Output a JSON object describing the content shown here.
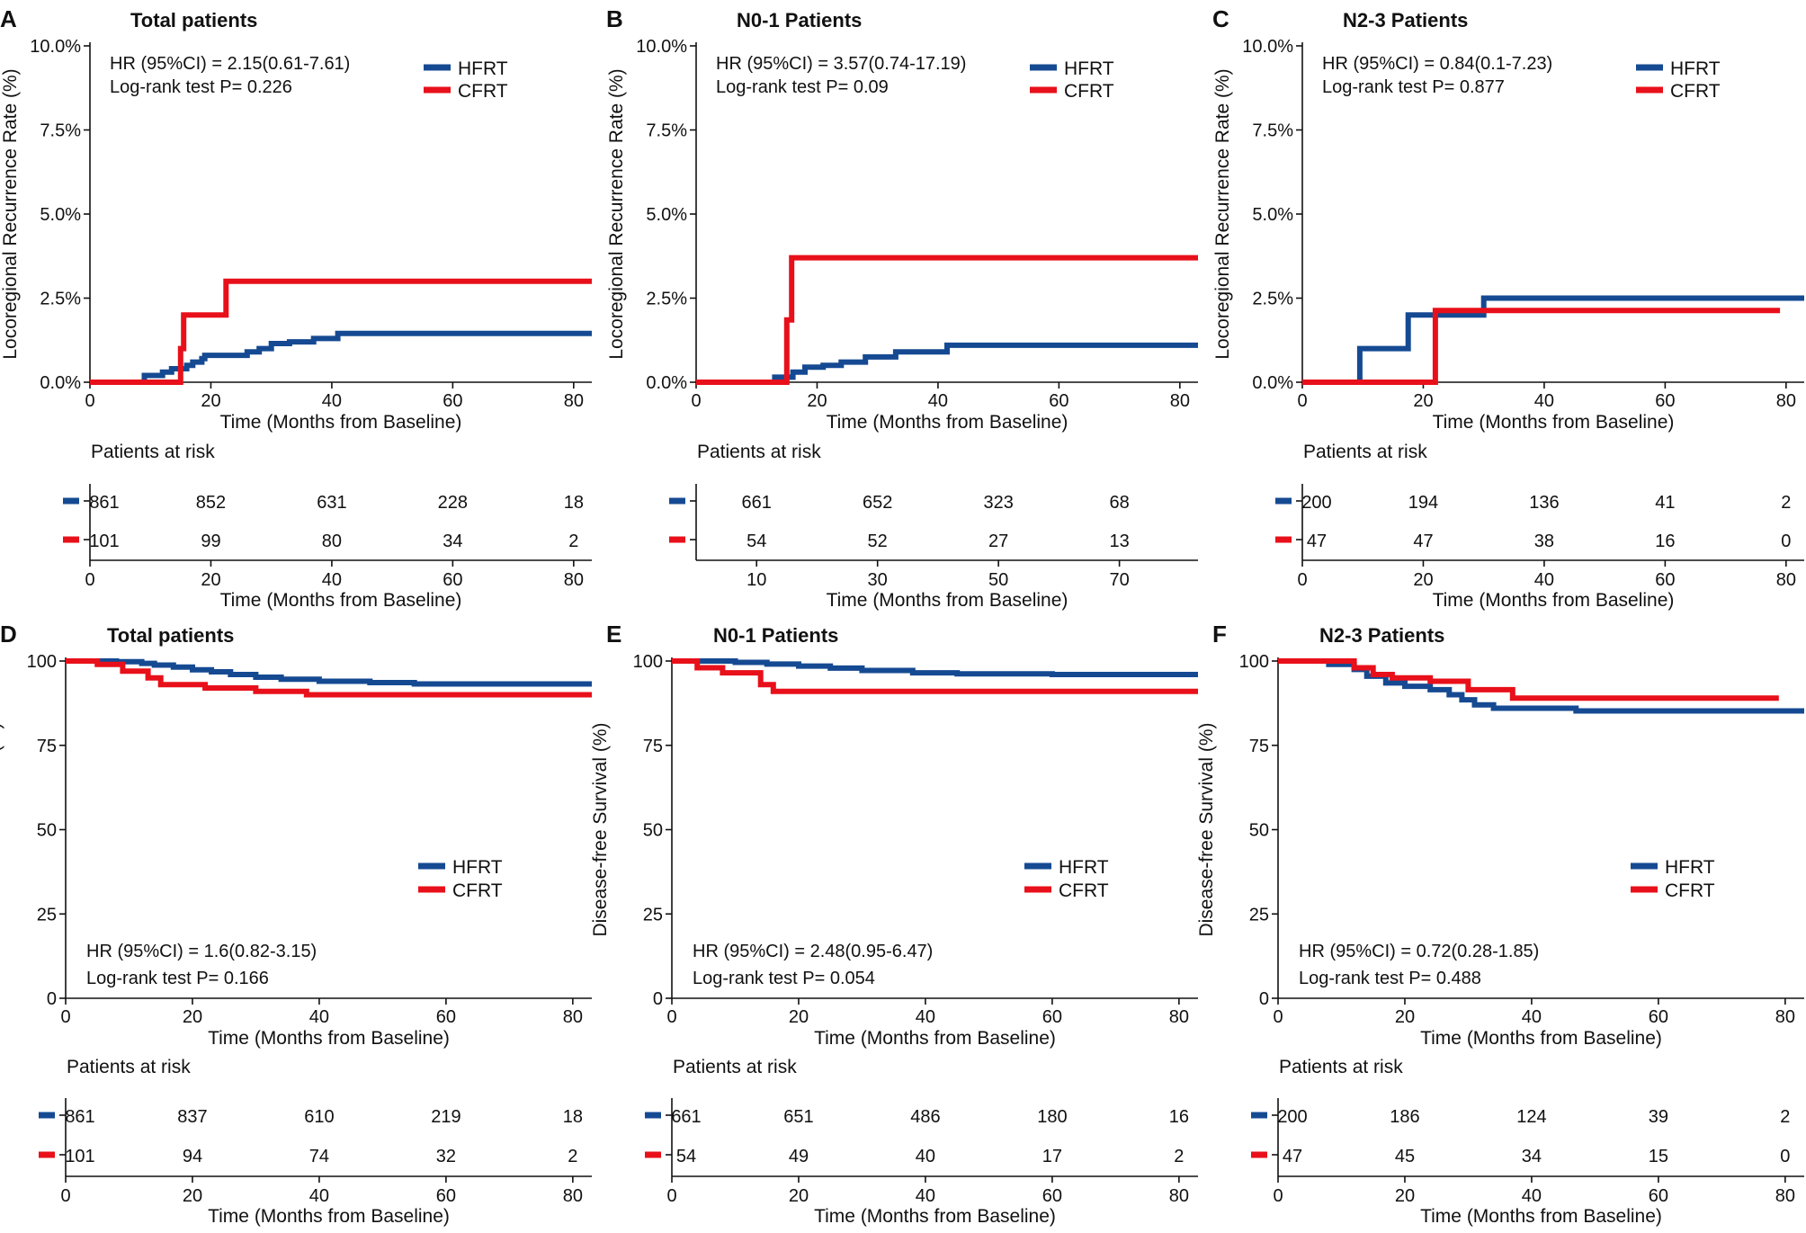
{
  "colors": {
    "hfrt": "#154a92",
    "cfrt": "#e8101a"
  },
  "chart_data": [
    {
      "type": "line",
      "panel_letter": "A",
      "title": "Total patients",
      "xlabel": "Time (Months from Baseline)",
      "ylabel": "Locoregional Recurrence Rate (%)",
      "xlim": [
        0,
        83
      ],
      "ylim": [
        0,
        10
      ],
      "xticks": [
        "0",
        "20",
        "40",
        "60",
        "80"
      ],
      "yticks": [
        "0.0%",
        "2.5%",
        "5.0%",
        "7.5%",
        "10.0%"
      ],
      "ytick_values": [
        0,
        2.5,
        5,
        7.5,
        10
      ],
      "stats": [
        "HR (95%CI) = 2.15(0.61-7.61)",
        "Log-rank test P= 0.226"
      ],
      "legend": [
        "HFRT",
        "CFRT"
      ],
      "series": [
        {
          "name": "HFRT",
          "x": [
            0,
            9,
            9,
            12,
            12,
            13.5,
            13.5,
            16,
            16,
            17,
            17,
            18.5,
            18.5,
            19,
            19,
            26,
            26,
            28,
            28,
            30,
            30,
            33,
            33,
            37,
            37,
            41,
            41,
            83
          ],
          "y": [
            0,
            0,
            0.2,
            0.2,
            0.3,
            0.3,
            0.4,
            0.4,
            0.5,
            0.5,
            0.6,
            0.6,
            0.7,
            0.7,
            0.8,
            0.8,
            0.9,
            0.9,
            1.0,
            1.0,
            1.15,
            1.15,
            1.2,
            1.2,
            1.3,
            1.3,
            1.45,
            1.45
          ]
        },
        {
          "name": "CFRT",
          "x": [
            0,
            15,
            15,
            15.5,
            15.5,
            22.5,
            22.5,
            83
          ],
          "y": [
            0,
            0,
            1.0,
            1.0,
            2.0,
            2.0,
            3.0,
            3.0
          ]
        }
      ],
      "risk_table": {
        "title": "Patients at risk",
        "xlabel": "Time (Months from Baseline)",
        "xticks": [
          "0",
          "20",
          "40",
          "60",
          "80"
        ],
        "tick_values": [
          0,
          20,
          40,
          60,
          80
        ],
        "xlim": [
          0,
          83
        ],
        "hfrt": [
          "861",
          "852",
          "631",
          "228",
          "18"
        ],
        "cfrt": [
          "101",
          "99",
          "80",
          "34",
          "2"
        ]
      }
    },
    {
      "type": "line",
      "panel_letter": "B",
      "title": "N0-1 Patients",
      "xlabel": "Time (Months from Baseline)",
      "ylabel": "Locoregional Recurrence Rate (%)",
      "xlim": [
        0,
        83
      ],
      "ylim": [
        0,
        10
      ],
      "xticks": [
        "0",
        "20",
        "40",
        "60",
        "80"
      ],
      "yticks": [
        "0.0%",
        "2.5%",
        "5.0%",
        "7.5%",
        "10.0%"
      ],
      "ytick_values": [
        0,
        2.5,
        5,
        7.5,
        10
      ],
      "stats": [
        "HR (95%CI) = 3.57(0.74-17.19)",
        "Log-rank test P= 0.09"
      ],
      "legend": [
        "HFRT",
        "CFRT"
      ],
      "series": [
        {
          "name": "HFRT",
          "x": [
            0,
            13,
            13,
            16,
            16,
            18,
            18,
            21,
            21,
            24,
            24,
            28,
            28,
            33,
            33,
            41.5,
            41.5,
            83
          ],
          "y": [
            0,
            0,
            0.15,
            0.15,
            0.3,
            0.3,
            0.45,
            0.45,
            0.5,
            0.5,
            0.6,
            0.6,
            0.75,
            0.75,
            0.9,
            0.9,
            1.1,
            1.1
          ]
        },
        {
          "name": "CFRT",
          "x": [
            0,
            15,
            15,
            15.8,
            15.8,
            83
          ],
          "y": [
            0,
            0,
            1.85,
            1.85,
            3.7,
            3.7
          ]
        }
      ],
      "risk_table": {
        "title": "Patients at risk",
        "xlabel": "Time (Months from Baseline)",
        "xticks": [
          "10",
          "30",
          "50",
          "70"
        ],
        "tick_values": [
          10,
          30,
          50,
          70
        ],
        "xlim": [
          0,
          83
        ],
        "hfrt": [
          "661",
          "652",
          "323",
          "68"
        ],
        "cfrt": [
          "54",
          "52",
          "27",
          "13"
        ]
      }
    },
    {
      "type": "line",
      "panel_letter": "C",
      "title": "N2-3 Patients",
      "xlabel": "Time (Months from Baseline)",
      "ylabel": "Locoregional Recurrence Rate (%)",
      "xlim": [
        0,
        83
      ],
      "ylim": [
        0,
        10
      ],
      "xticks": [
        "0",
        "20",
        "40",
        "60",
        "80"
      ],
      "yticks": [
        "0.0%",
        "2.5%",
        "5.0%",
        "7.5%",
        "10.0%"
      ],
      "ytick_values": [
        0,
        2.5,
        5,
        7.5,
        10
      ],
      "stats": [
        "HR (95%CI) = 0.84(0.1-7.23)",
        "Log-rank test P= 0.877"
      ],
      "legend": [
        "HFRT",
        "CFRT"
      ],
      "series": [
        {
          "name": "HFRT",
          "x": [
            0,
            9.5,
            9.5,
            17.5,
            17.5,
            30,
            30,
            83
          ],
          "y": [
            0,
            0,
            1.0,
            1.0,
            2.0,
            2.0,
            2.5,
            2.5
          ]
        },
        {
          "name": "CFRT",
          "x": [
            0,
            22,
            22,
            79
          ],
          "y": [
            0,
            0,
            2.13,
            2.13
          ]
        }
      ],
      "risk_table": {
        "title": "Patients at risk",
        "xlabel": "Time (Months from Baseline)",
        "xticks": [
          "0",
          "20",
          "40",
          "60",
          "80"
        ],
        "tick_values": [
          0,
          20,
          40,
          60,
          80
        ],
        "xlim": [
          0,
          83
        ],
        "hfrt": [
          "200",
          "194",
          "136",
          "41",
          "2"
        ],
        "cfrt": [
          "47",
          "47",
          "38",
          "16",
          "0"
        ]
      }
    },
    {
      "type": "line",
      "panel_letter": "D",
      "title": "Total patients",
      "xlabel": "Time (Months from Baseline)",
      "ylabel": "Disease-free Survival (%)",
      "xlim": [
        0,
        83
      ],
      "ylim": [
        0,
        100
      ],
      "xticks": [
        "0",
        "20",
        "40",
        "60",
        "80"
      ],
      "yticks": [
        "0",
        "25",
        "50",
        "75",
        "100"
      ],
      "ytick_values": [
        0,
        25,
        50,
        75,
        100
      ],
      "stats": [
        "HR (95%CI) = 1.6(0.82-3.15)",
        "Log-rank test P= 0.166"
      ],
      "legend": [
        "HFRT",
        "CFRT"
      ],
      "series": [
        {
          "name": "HFRT",
          "x": [
            0,
            8,
            8,
            12,
            12,
            14,
            14,
            17,
            17,
            20,
            20,
            23,
            23,
            26,
            26,
            30,
            30,
            34,
            34,
            40,
            40,
            48,
            48,
            55,
            55,
            83
          ],
          "y": [
            100,
            100,
            99.8,
            99.8,
            99.3,
            99.3,
            98.8,
            98.8,
            98.2,
            98.2,
            97.4,
            97.4,
            96.8,
            96.8,
            96,
            96,
            95.2,
            95.2,
            94.6,
            94.6,
            94,
            94,
            93.6,
            93.6,
            93.2,
            93.2
          ]
        },
        {
          "name": "CFRT",
          "x": [
            0,
            5,
            5,
            9,
            9,
            13,
            13,
            15,
            15,
            22,
            22,
            30,
            30,
            38,
            38,
            83
          ],
          "y": [
            100,
            100,
            99,
            99,
            97,
            97,
            95,
            95,
            93,
            93,
            92,
            92,
            91,
            91,
            90,
            90
          ]
        }
      ],
      "risk_table": {
        "title": "Patients at risk",
        "xlabel": "Time (Months from Baseline)",
        "xticks": [
          "0",
          "20",
          "40",
          "60",
          "80"
        ],
        "tick_values": [
          0,
          20,
          40,
          60,
          80
        ],
        "xlim": [
          0,
          83
        ],
        "hfrt": [
          "861",
          "837",
          "610",
          "219",
          "18"
        ],
        "cfrt": [
          "101",
          "94",
          "74",
          "32",
          "2"
        ]
      }
    },
    {
      "type": "line",
      "panel_letter": "E",
      "title": "N0-1 Patients",
      "xlabel": "Time (Months from Baseline)",
      "ylabel": "Disease-free Survival (%)",
      "xlim": [
        0,
        83
      ],
      "ylim": [
        0,
        100
      ],
      "xticks": [
        "0",
        "20",
        "40",
        "60",
        "80"
      ],
      "yticks": [
        "0",
        "25",
        "50",
        "75",
        "100"
      ],
      "ytick_values": [
        0,
        25,
        50,
        75,
        100
      ],
      "stats": [
        "HR (95%CI) = 2.48(0.95-6.47)",
        "Log-rank test P= 0.054"
      ],
      "legend": [
        "HFRT",
        "CFRT"
      ],
      "series": [
        {
          "name": "HFRT",
          "x": [
            0,
            10,
            10,
            15,
            15,
            20,
            20,
            25,
            25,
            30,
            30,
            38,
            38,
            45,
            45,
            60,
            60,
            83
          ],
          "y": [
            100,
            100,
            99.6,
            99.6,
            99.1,
            99.1,
            98.5,
            98.5,
            97.9,
            97.9,
            97.2,
            97.2,
            96.5,
            96.5,
            96.2,
            96.2,
            96,
            96
          ]
        },
        {
          "name": "CFRT",
          "x": [
            0,
            4,
            4,
            8,
            8,
            14,
            14,
            16,
            16,
            83
          ],
          "y": [
            100,
            100,
            98,
            98,
            96.5,
            96.5,
            93,
            93,
            91,
            91
          ]
        }
      ],
      "risk_table": {
        "title": "Patients at risk",
        "xlabel": "Time (Months from Baseline)",
        "xticks": [
          "0",
          "20",
          "40",
          "60",
          "80"
        ],
        "tick_values": [
          0,
          20,
          40,
          60,
          80
        ],
        "xlim": [
          0,
          83
        ],
        "hfrt": [
          "661",
          "651",
          "486",
          "180",
          "16"
        ],
        "cfrt": [
          "54",
          "49",
          "40",
          "17",
          "2"
        ]
      }
    },
    {
      "type": "line",
      "panel_letter": "F",
      "title": "N2-3 Patients",
      "xlabel": "Time (Months from Baseline)",
      "ylabel": "Disease-free Survival (%)",
      "xlim": [
        0,
        83
      ],
      "ylim": [
        0,
        100
      ],
      "xticks": [
        "0",
        "20",
        "40",
        "60",
        "80"
      ],
      "yticks": [
        "0",
        "25",
        "50",
        "75",
        "100"
      ],
      "ytick_values": [
        0,
        25,
        50,
        75,
        100
      ],
      "stats": [
        "HR (95%CI) = 0.72(0.28-1.85)",
        "Log-rank test P= 0.488"
      ],
      "legend": [
        "HFRT",
        "CFRT"
      ],
      "series": [
        {
          "name": "HFRT",
          "x": [
            0,
            8,
            8,
            12,
            12,
            14,
            14,
            17,
            17,
            20,
            20,
            24,
            24,
            27,
            27,
            29,
            29,
            31,
            31,
            34,
            34,
            47,
            47,
            83
          ],
          "y": [
            100,
            100,
            99,
            99,
            97.5,
            97.5,
            95.5,
            95.5,
            93.5,
            93.5,
            92.5,
            92.5,
            91.5,
            91.5,
            90,
            90,
            88.5,
            88.5,
            87,
            87,
            86,
            86,
            85.2,
            85.2
          ]
        },
        {
          "name": "CFRT",
          "x": [
            0,
            12,
            12,
            15,
            15,
            18,
            18,
            24,
            24,
            30,
            30,
            37,
            37,
            79
          ],
          "y": [
            100,
            100,
            98,
            98,
            96,
            96,
            95,
            95,
            94,
            94,
            91.5,
            91.5,
            89,
            89
          ]
        }
      ],
      "risk_table": {
        "title": "Patients at risk",
        "xlabel": "Time (Months from Baseline)",
        "xticks": [
          "0",
          "20",
          "40",
          "60",
          "80"
        ],
        "tick_values": [
          0,
          20,
          40,
          60,
          80
        ],
        "xlim": [
          0,
          83
        ],
        "hfrt": [
          "200",
          "186",
          "124",
          "39",
          "2"
        ],
        "cfrt": [
          "47",
          "45",
          "34",
          "15",
          "0"
        ]
      }
    }
  ]
}
